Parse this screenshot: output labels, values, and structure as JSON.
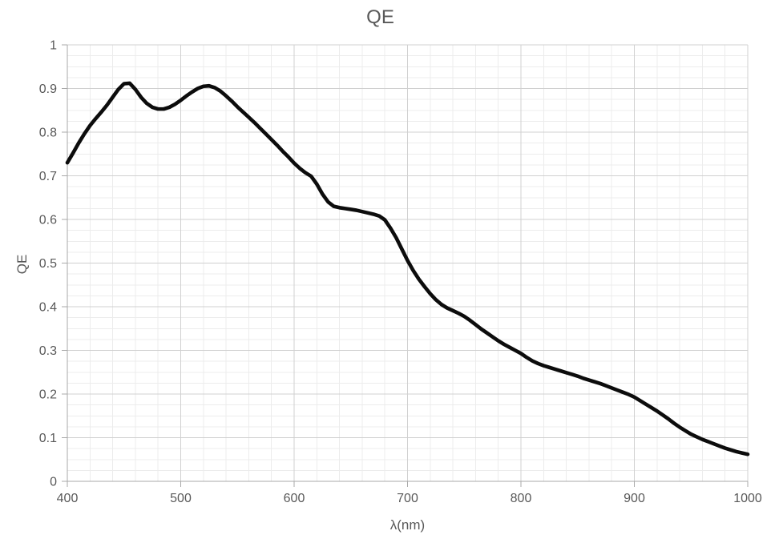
{
  "chart_data": {
    "type": "line",
    "title": "QE",
    "xlabel": "λ(nm)",
    "ylabel": "QE",
    "xlim": [
      400,
      1000
    ],
    "ylim": [
      0,
      1
    ],
    "x_major_ticks": [
      400,
      500,
      600,
      700,
      800,
      900,
      1000
    ],
    "x_tick_labels": [
      "400",
      "500",
      "600",
      "700",
      "800",
      "900",
      "1000"
    ],
    "y_major_ticks": [
      0,
      0.1,
      0.2,
      0.3,
      0.4,
      0.5,
      0.6,
      0.7,
      0.8,
      0.9,
      1
    ],
    "y_tick_labels": [
      "0",
      "0.1",
      "0.2",
      "0.3",
      "0.4",
      "0.5",
      "0.6",
      "0.7",
      "0.8",
      "0.9",
      "1"
    ],
    "x_minor_step": 20,
    "y_minor_step": 0.025,
    "grid": "major and minor, both axes",
    "legend": "none",
    "colors": {
      "line": "#0c0c0c",
      "major_grid": "#d0d0d0",
      "minor_grid": "#ececec",
      "axis": "#a9a9a9",
      "text": "#595959",
      "background": "#ffffff"
    },
    "line_width": 4.6,
    "series": [
      {
        "name": "QE",
        "x": [
          400,
          405,
          410,
          415,
          420,
          425,
          430,
          435,
          440,
          445,
          450,
          455,
          460,
          465,
          470,
          475,
          480,
          485,
          490,
          495,
          500,
          505,
          510,
          515,
          520,
          525,
          530,
          535,
          540,
          545,
          550,
          555,
          560,
          565,
          570,
          575,
          580,
          585,
          590,
          595,
          600,
          605,
          610,
          615,
          620,
          625,
          630,
          635,
          640,
          645,
          650,
          655,
          660,
          665,
          670,
          675,
          680,
          685,
          690,
          695,
          700,
          705,
          710,
          715,
          720,
          725,
          730,
          735,
          740,
          745,
          750,
          755,
          760,
          765,
          770,
          775,
          780,
          785,
          790,
          795,
          800,
          805,
          810,
          815,
          820,
          825,
          830,
          835,
          840,
          845,
          850,
          855,
          860,
          865,
          870,
          875,
          880,
          885,
          890,
          895,
          900,
          905,
          910,
          915,
          920,
          925,
          930,
          935,
          940,
          945,
          950,
          955,
          960,
          965,
          970,
          975,
          980,
          985,
          990,
          995,
          1000
        ],
        "y": [
          0.73,
          0.752,
          0.775,
          0.796,
          0.815,
          0.831,
          0.846,
          0.862,
          0.88,
          0.898,
          0.911,
          0.912,
          0.898,
          0.88,
          0.866,
          0.857,
          0.853,
          0.853,
          0.857,
          0.864,
          0.873,
          0.883,
          0.892,
          0.9,
          0.905,
          0.906,
          0.902,
          0.894,
          0.883,
          0.871,
          0.858,
          0.846,
          0.834,
          0.822,
          0.809,
          0.796,
          0.783,
          0.77,
          0.756,
          0.743,
          0.729,
          0.717,
          0.707,
          0.699,
          0.681,
          0.658,
          0.64,
          0.63,
          0.627,
          0.625,
          0.623,
          0.621,
          0.618,
          0.615,
          0.612,
          0.608,
          0.599,
          0.58,
          0.558,
          0.532,
          0.506,
          0.483,
          0.463,
          0.446,
          0.43,
          0.416,
          0.405,
          0.397,
          0.391,
          0.385,
          0.378,
          0.369,
          0.359,
          0.349,
          0.34,
          0.331,
          0.322,
          0.314,
          0.307,
          0.3,
          0.293,
          0.284,
          0.276,
          0.27,
          0.265,
          0.261,
          0.257,
          0.253,
          0.249,
          0.245,
          0.241,
          0.236,
          0.232,
          0.228,
          0.224,
          0.219,
          0.214,
          0.209,
          0.204,
          0.199,
          0.193,
          0.185,
          0.177,
          0.169,
          0.161,
          0.152,
          0.143,
          0.133,
          0.124,
          0.116,
          0.108,
          0.102,
          0.096,
          0.091,
          0.086,
          0.081,
          0.076,
          0.072,
          0.068,
          0.065,
          0.062
        ]
      }
    ]
  }
}
